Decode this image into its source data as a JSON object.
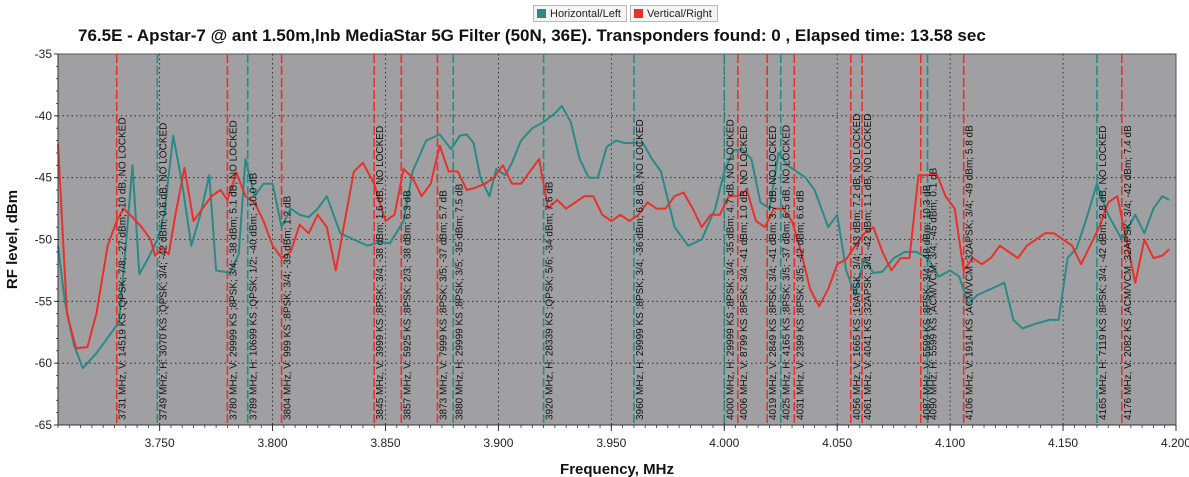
{
  "legend": {
    "items": [
      {
        "label": "Horizontal/Left",
        "color": "#2a8a86"
      },
      {
        "label": "Vertical/Right",
        "color": "#e8312b"
      }
    ]
  },
  "chart_data": {
    "type": "line",
    "title": "76.5E - Apstar-7 @ ant 1.50m,lnb MediaStar 5G Filter (50N, 36E). Transponders found: 0 , Elapsed time: 13.58 sec",
    "xlabel": "Frequency, MHz",
    "ylabel": "RF level, dBm",
    "xlim": [
      3.705,
      4.2
    ],
    "ylim": [
      -65,
      -35
    ],
    "xticks": [
      "3.750",
      "3.800",
      "3.850",
      "3.900",
      "3.950",
      "4.000",
      "4.050",
      "4.100",
      "4.150",
      "4.200"
    ],
    "yticks": [
      "-35",
      "-40",
      "-45",
      "-50",
      "-55",
      "-60",
      "-65"
    ],
    "grid": true,
    "plot_background": "#a0a0a3",
    "series": [
      {
        "name": "Horizontal/Left",
        "color": "#2a8a86",
        "points": [
          [
            3.705,
            -50.5
          ],
          [
            3.708,
            -55
          ],
          [
            3.712,
            -58.5
          ],
          [
            3.716,
            -60.4
          ],
          [
            3.722,
            -59.2
          ],
          [
            3.728,
            -57.7
          ],
          [
            3.732,
            -56.7
          ],
          [
            3.735,
            -50.5
          ],
          [
            3.738,
            -44
          ],
          [
            3.741,
            -52.8
          ],
          [
            3.745,
            -51.5
          ],
          [
            3.749,
            -50
          ],
          [
            3.752,
            -48
          ],
          [
            3.756,
            -41.6
          ],
          [
            3.76,
            -45.5
          ],
          [
            3.764,
            -50.5
          ],
          [
            3.768,
            -48
          ],
          [
            3.772,
            -44.8
          ],
          [
            3.775,
            -52.5
          ],
          [
            3.781,
            -52.7
          ],
          [
            3.785,
            -51.2
          ],
          [
            3.788,
            -43.5
          ],
          [
            3.792,
            -46.5
          ],
          [
            3.796,
            -45.5
          ],
          [
            3.8,
            -45.5
          ],
          [
            3.804,
            -49
          ],
          [
            3.808,
            -47.5
          ],
          [
            3.812,
            -48
          ],
          [
            3.816,
            -48.2
          ],
          [
            3.82,
            -47.5
          ],
          [
            3.824,
            -46.5
          ],
          [
            3.83,
            -49.5
          ],
          [
            3.836,
            -50
          ],
          [
            3.842,
            -50.5
          ],
          [
            3.848,
            -50.2
          ],
          [
            3.852,
            -50.3
          ],
          [
            3.858,
            -48.5
          ],
          [
            3.862,
            -44.5
          ],
          [
            3.868,
            -42
          ],
          [
            3.874,
            -41.5
          ],
          [
            3.879,
            -42.7
          ],
          [
            3.883,
            -41.6
          ],
          [
            3.886,
            -41.5
          ],
          [
            3.889,
            -42.2
          ],
          [
            3.892,
            -45
          ],
          [
            3.896,
            -46.5
          ],
          [
            3.899,
            -44.3
          ],
          [
            3.903,
            -44.8
          ],
          [
            3.906,
            -43.8
          ],
          [
            3.91,
            -42
          ],
          [
            3.915,
            -41
          ],
          [
            3.92,
            -40.5
          ],
          [
            3.925,
            -39.8
          ],
          [
            3.928,
            -39.2
          ],
          [
            3.932,
            -40.5
          ],
          [
            3.936,
            -43.5
          ],
          [
            3.94,
            -45
          ],
          [
            3.944,
            -45
          ],
          [
            3.948,
            -42.5
          ],
          [
            3.952,
            -42
          ],
          [
            3.956,
            -42.2
          ],
          [
            3.96,
            -42.2
          ],
          [
            3.964,
            -42.2
          ],
          [
            3.968,
            -43.5
          ],
          [
            3.972,
            -44.5
          ],
          [
            3.978,
            -49
          ],
          [
            3.984,
            -50.5
          ],
          [
            3.99,
            -50
          ],
          [
            3.996,
            -47.5
          ],
          [
            4.0,
            -44.5
          ],
          [
            4.004,
            -42.8
          ],
          [
            4.008,
            -42.7
          ],
          [
            4.012,
            -43.5
          ],
          [
            4.016,
            -47
          ],
          [
            4.02,
            -47.5
          ],
          [
            4.024,
            -43
          ],
          [
            4.028,
            -44
          ],
          [
            4.032,
            -44.5
          ],
          [
            4.036,
            -45
          ],
          [
            4.04,
            -46
          ],
          [
            4.046,
            -49
          ],
          [
            4.05,
            -48
          ],
          [
            4.054,
            -52.5
          ],
          [
            4.058,
            -54.5
          ],
          [
            4.062,
            -51.5
          ],
          [
            4.066,
            -52.7
          ],
          [
            4.07,
            -52.6
          ],
          [
            4.075,
            -51.5
          ],
          [
            4.08,
            -51
          ],
          [
            4.085,
            -51
          ],
          [
            4.09,
            -51.5
          ],
          [
            4.095,
            -53
          ],
          [
            4.1,
            -52.5
          ],
          [
            4.104,
            -53
          ],
          [
            4.108,
            -55.2
          ],
          [
            4.112,
            -54.5
          ],
          [
            4.118,
            -54
          ],
          [
            4.124,
            -53.5
          ],
          [
            4.128,
            -56.5
          ],
          [
            4.132,
            -57.2
          ],
          [
            4.138,
            -56.8
          ],
          [
            4.144,
            -56.5
          ],
          [
            4.148,
            -56.5
          ],
          [
            4.152,
            -51.5
          ],
          [
            4.156,
            -50.7
          ],
          [
            4.16,
            -48.5
          ],
          [
            4.165,
            -45.5
          ],
          [
            4.17,
            -48
          ],
          [
            4.176,
            -50
          ],
          [
            4.182,
            -48
          ],
          [
            4.186,
            -49.5
          ],
          [
            4.19,
            -47.5
          ],
          [
            4.194,
            -46.5
          ],
          [
            4.197,
            -46.8
          ]
        ]
      },
      {
        "name": "Vertical/Right",
        "color": "#e8312b",
        "points": [
          [
            3.705,
            -42.3
          ],
          [
            3.709,
            -56
          ],
          [
            3.713,
            -58.8
          ],
          [
            3.718,
            -58.7
          ],
          [
            3.722,
            -56
          ],
          [
            3.727,
            -50.5
          ],
          [
            3.731,
            -48.5
          ],
          [
            3.734,
            -47.5
          ],
          [
            3.738,
            -48.2
          ],
          [
            3.742,
            -49
          ],
          [
            3.746,
            -50
          ],
          [
            3.748,
            -51.3
          ],
          [
            3.751,
            -50.7
          ],
          [
            3.754,
            -51.2
          ],
          [
            3.757,
            -48
          ],
          [
            3.761,
            -44.2
          ],
          [
            3.765,
            -48.5
          ],
          [
            3.769,
            -47.5
          ],
          [
            3.773,
            -46.5
          ],
          [
            3.777,
            -46
          ],
          [
            3.78,
            -46.8
          ],
          [
            3.784,
            -44.6
          ],
          [
            3.788,
            -46.5
          ],
          [
            3.792,
            -47
          ],
          [
            3.796,
            -48.5
          ],
          [
            3.8,
            -50.5
          ],
          [
            3.804,
            -51.5
          ],
          [
            3.808,
            -51
          ],
          [
            3.812,
            -48.8
          ],
          [
            3.816,
            -49.5
          ],
          [
            3.82,
            -48
          ],
          [
            3.824,
            -49
          ],
          [
            3.828,
            -52.5
          ],
          [
            3.832,
            -48.5
          ],
          [
            3.836,
            -44.5
          ],
          [
            3.84,
            -43.8
          ],
          [
            3.845,
            -45.5
          ],
          [
            3.85,
            -48.5
          ],
          [
            3.854,
            -48
          ],
          [
            3.858,
            -44.3
          ],
          [
            3.862,
            -45
          ],
          [
            3.866,
            -46.5
          ],
          [
            3.87,
            -45.5
          ],
          [
            3.874,
            -42.4
          ],
          [
            3.878,
            -44.5
          ],
          [
            3.882,
            -44.5
          ],
          [
            3.886,
            -46
          ],
          [
            3.89,
            -45.8
          ],
          [
            3.894,
            -45.5
          ],
          [
            3.898,
            -45
          ],
          [
            3.902,
            -44
          ],
          [
            3.906,
            -45.5
          ],
          [
            3.91,
            -45.5
          ],
          [
            3.914,
            -44.5
          ],
          [
            3.918,
            -43.5
          ],
          [
            3.922,
            -47.5
          ],
          [
            3.926,
            -46.8
          ],
          [
            3.93,
            -47.5
          ],
          [
            3.934,
            -47
          ],
          [
            3.938,
            -46.5
          ],
          [
            3.942,
            -46.5
          ],
          [
            3.946,
            -48
          ],
          [
            3.95,
            -48.5
          ],
          [
            3.954,
            -48
          ],
          [
            3.958,
            -48.5
          ],
          [
            3.962,
            -48
          ],
          [
            3.966,
            -47
          ],
          [
            3.97,
            -47.5
          ],
          [
            3.974,
            -47.5
          ],
          [
            3.978,
            -46.5
          ],
          [
            3.982,
            -46.2
          ],
          [
            3.986,
            -47.5
          ],
          [
            3.99,
            -49
          ],
          [
            3.994,
            -48
          ],
          [
            3.998,
            -48
          ],
          [
            4.002,
            -46.5
          ],
          [
            4.006,
            -46.5
          ],
          [
            4.01,
            -46
          ],
          [
            4.014,
            -48.5
          ],
          [
            4.018,
            -49
          ],
          [
            4.022,
            -47.5
          ],
          [
            4.026,
            -47.5
          ],
          [
            4.03,
            -48.5
          ],
          [
            4.034,
            -51
          ],
          [
            4.038,
            -54
          ],
          [
            4.042,
            -55.4
          ],
          [
            4.046,
            -54
          ],
          [
            4.05,
            -52
          ],
          [
            4.054,
            -51.6
          ],
          [
            4.058,
            -50.5
          ],
          [
            4.062,
            -49.5
          ],
          [
            4.066,
            -49
          ],
          [
            4.07,
            -51
          ],
          [
            4.074,
            -52.5
          ],
          [
            4.078,
            -51.5
          ],
          [
            4.082,
            -51.5
          ],
          [
            4.086,
            -44.8
          ],
          [
            4.09,
            -44.8
          ],
          [
            4.094,
            -44.7
          ],
          [
            4.098,
            -46.5
          ],
          [
            4.102,
            -47.5
          ],
          [
            4.106,
            -52.5
          ],
          [
            4.11,
            -51.5
          ],
          [
            4.114,
            -52
          ],
          [
            4.118,
            -51.5
          ],
          [
            4.122,
            -50.5
          ],
          [
            4.126,
            -51
          ],
          [
            4.13,
            -51.5
          ],
          [
            4.134,
            -50.5
          ],
          [
            4.138,
            -50
          ],
          [
            4.142,
            -49.5
          ],
          [
            4.146,
            -49.5
          ],
          [
            4.15,
            -50
          ],
          [
            4.154,
            -50.5
          ],
          [
            4.158,
            -52
          ],
          [
            4.162,
            -50.5
          ],
          [
            4.166,
            -49
          ],
          [
            4.17,
            -47
          ],
          [
            4.174,
            -46.5
          ],
          [
            4.178,
            -50
          ],
          [
            4.182,
            -53.5
          ],
          [
            4.186,
            -50
          ],
          [
            4.19,
            -51.5
          ],
          [
            4.194,
            -51.3
          ],
          [
            4.197,
            -50.8
          ]
        ]
      }
    ],
    "markers": [
      {
        "x": 3.731,
        "pol": "V",
        "label": "3731 MHz, V: 14519 KS ;QPSK; 7/8; -27 dBm; -10 dB, NO LOCKED"
      },
      {
        "x": 3.749,
        "pol": "H",
        "label": "3749 MHz, H: 3070 KS ;QPSK; 3/4; -42 dBm; 0.6 dB, NO LOCKED"
      },
      {
        "x": 3.78,
        "pol": "V",
        "label": "3780 MHz, V: 29999 KS ;8PSK; 3/4; -38 dBm; 5.1 dB, NO LOCKED"
      },
      {
        "x": 3.789,
        "pol": "H",
        "label": "3789 MHz, H: 10699 KS ;QPSK; 1/2; -40 dBm; -10.0 dB"
      },
      {
        "x": 3.804,
        "pol": "V",
        "label": "3804 MHz, V: 999 KS ;8PSK; 3/4; -39 dBm; 1.2 dB"
      },
      {
        "x": 3.845,
        "pol": "V",
        "label": "3845 MHz, V: 3999 KS ;8PSK; 3/4; -38 dBm; 1.6 dB, NO LOCKED"
      },
      {
        "x": 3.857,
        "pol": "V",
        "label": "3857 MHz, V: 5925 KS ;8PSK; 2/3; -38 dBm; 6.3 dB"
      },
      {
        "x": 3.873,
        "pol": "V",
        "label": "3873 MHz, V: 7999 KS ;8PSK; 3/5; -37 dBm; 5.7 dB"
      },
      {
        "x": 3.88,
        "pol": "H",
        "label": "3880 MHz, H: 29999 KS ;8PSK; 3/5; -35 dBm; 7.5 dB"
      },
      {
        "x": 3.92,
        "pol": "H",
        "label": "3920 MHz, H: 28339 KS ;QPSK; 5/6; -34 dBm; 7.6 dB"
      },
      {
        "x": 3.96,
        "pol": "H",
        "label": "3960 MHz, H: 29999 KS ;8PSK; 3/4; -36 dBm; 6.8 dB, NO LOCKED"
      },
      {
        "x": 4.0,
        "pol": "H",
        "label": "4000 MHz, H: 29999 KS ;8PSK; 3/4; -35 dBm; 4.7 dB, NO LOCKED"
      },
      {
        "x": 4.006,
        "pol": "V",
        "label": "4006 MHz, V: 8799 KS ;8PSK; 3/4; -41 dBm; 1.0 dB, NO LOCKED"
      },
      {
        "x": 4.019,
        "pol": "V",
        "label": "4019 MHz, V: 2849 KS ;8PSK; 3/4; -41 dBm; 3.7 dB, NO LOCKED"
      },
      {
        "x": 4.025,
        "pol": "H",
        "label": "4025 MHz, H: 4165 KS ;8PSK; 3/5; -37 dBm; 6.5 dB, NO LOCKED"
      },
      {
        "x": 4.031,
        "pol": "V",
        "label": "4031 MHz, V: 2399 KS ;8PSK; 3/5; -42 dBm; 6.6 dB"
      },
      {
        "x": 4.056,
        "pol": "V",
        "label": "4056 MHz, V: 1665 KS ;16APSK; 3/4; -43 dBm; 7.2 dB, NO LOCKED"
      },
      {
        "x": 4.061,
        "pol": "V",
        "label": "4061 MHz, V: 4041 KS ;32APSK; 3/4; -42 dBm; 1.1 dB, NO LOCKED"
      },
      {
        "x": 4.087,
        "pol": "V",
        "label": "4087 MHz, V: 5599 KS ;8PSK; 3/4; -48 dBm; 10.3 dB"
      },
      {
        "x": 4.09,
        "pol": "H",
        "label": "4090 MHz, H: 5599 KS ;ACM/VCM; 3/4; -45 dBm; 0.1 dB"
      },
      {
        "x": 4.106,
        "pol": "V",
        "label": "4106 MHz, V: 1914 KS ;ACM/VCM ;32APSK; 3/4; -49 dBm; 5.8 dB"
      },
      {
        "x": 4.165,
        "pol": "H",
        "label": "4165 MHz, H: 7119 KS ;8PSK; 3/4; -42 dBm; 2.8 dB, NO LOCKED"
      },
      {
        "x": 4.176,
        "pol": "V",
        "label": "4176 MHz, V: 2082 KS ;ACM/VCM ;32APSK; 3/4; -42 dBm; 7.4 dB"
      }
    ]
  }
}
